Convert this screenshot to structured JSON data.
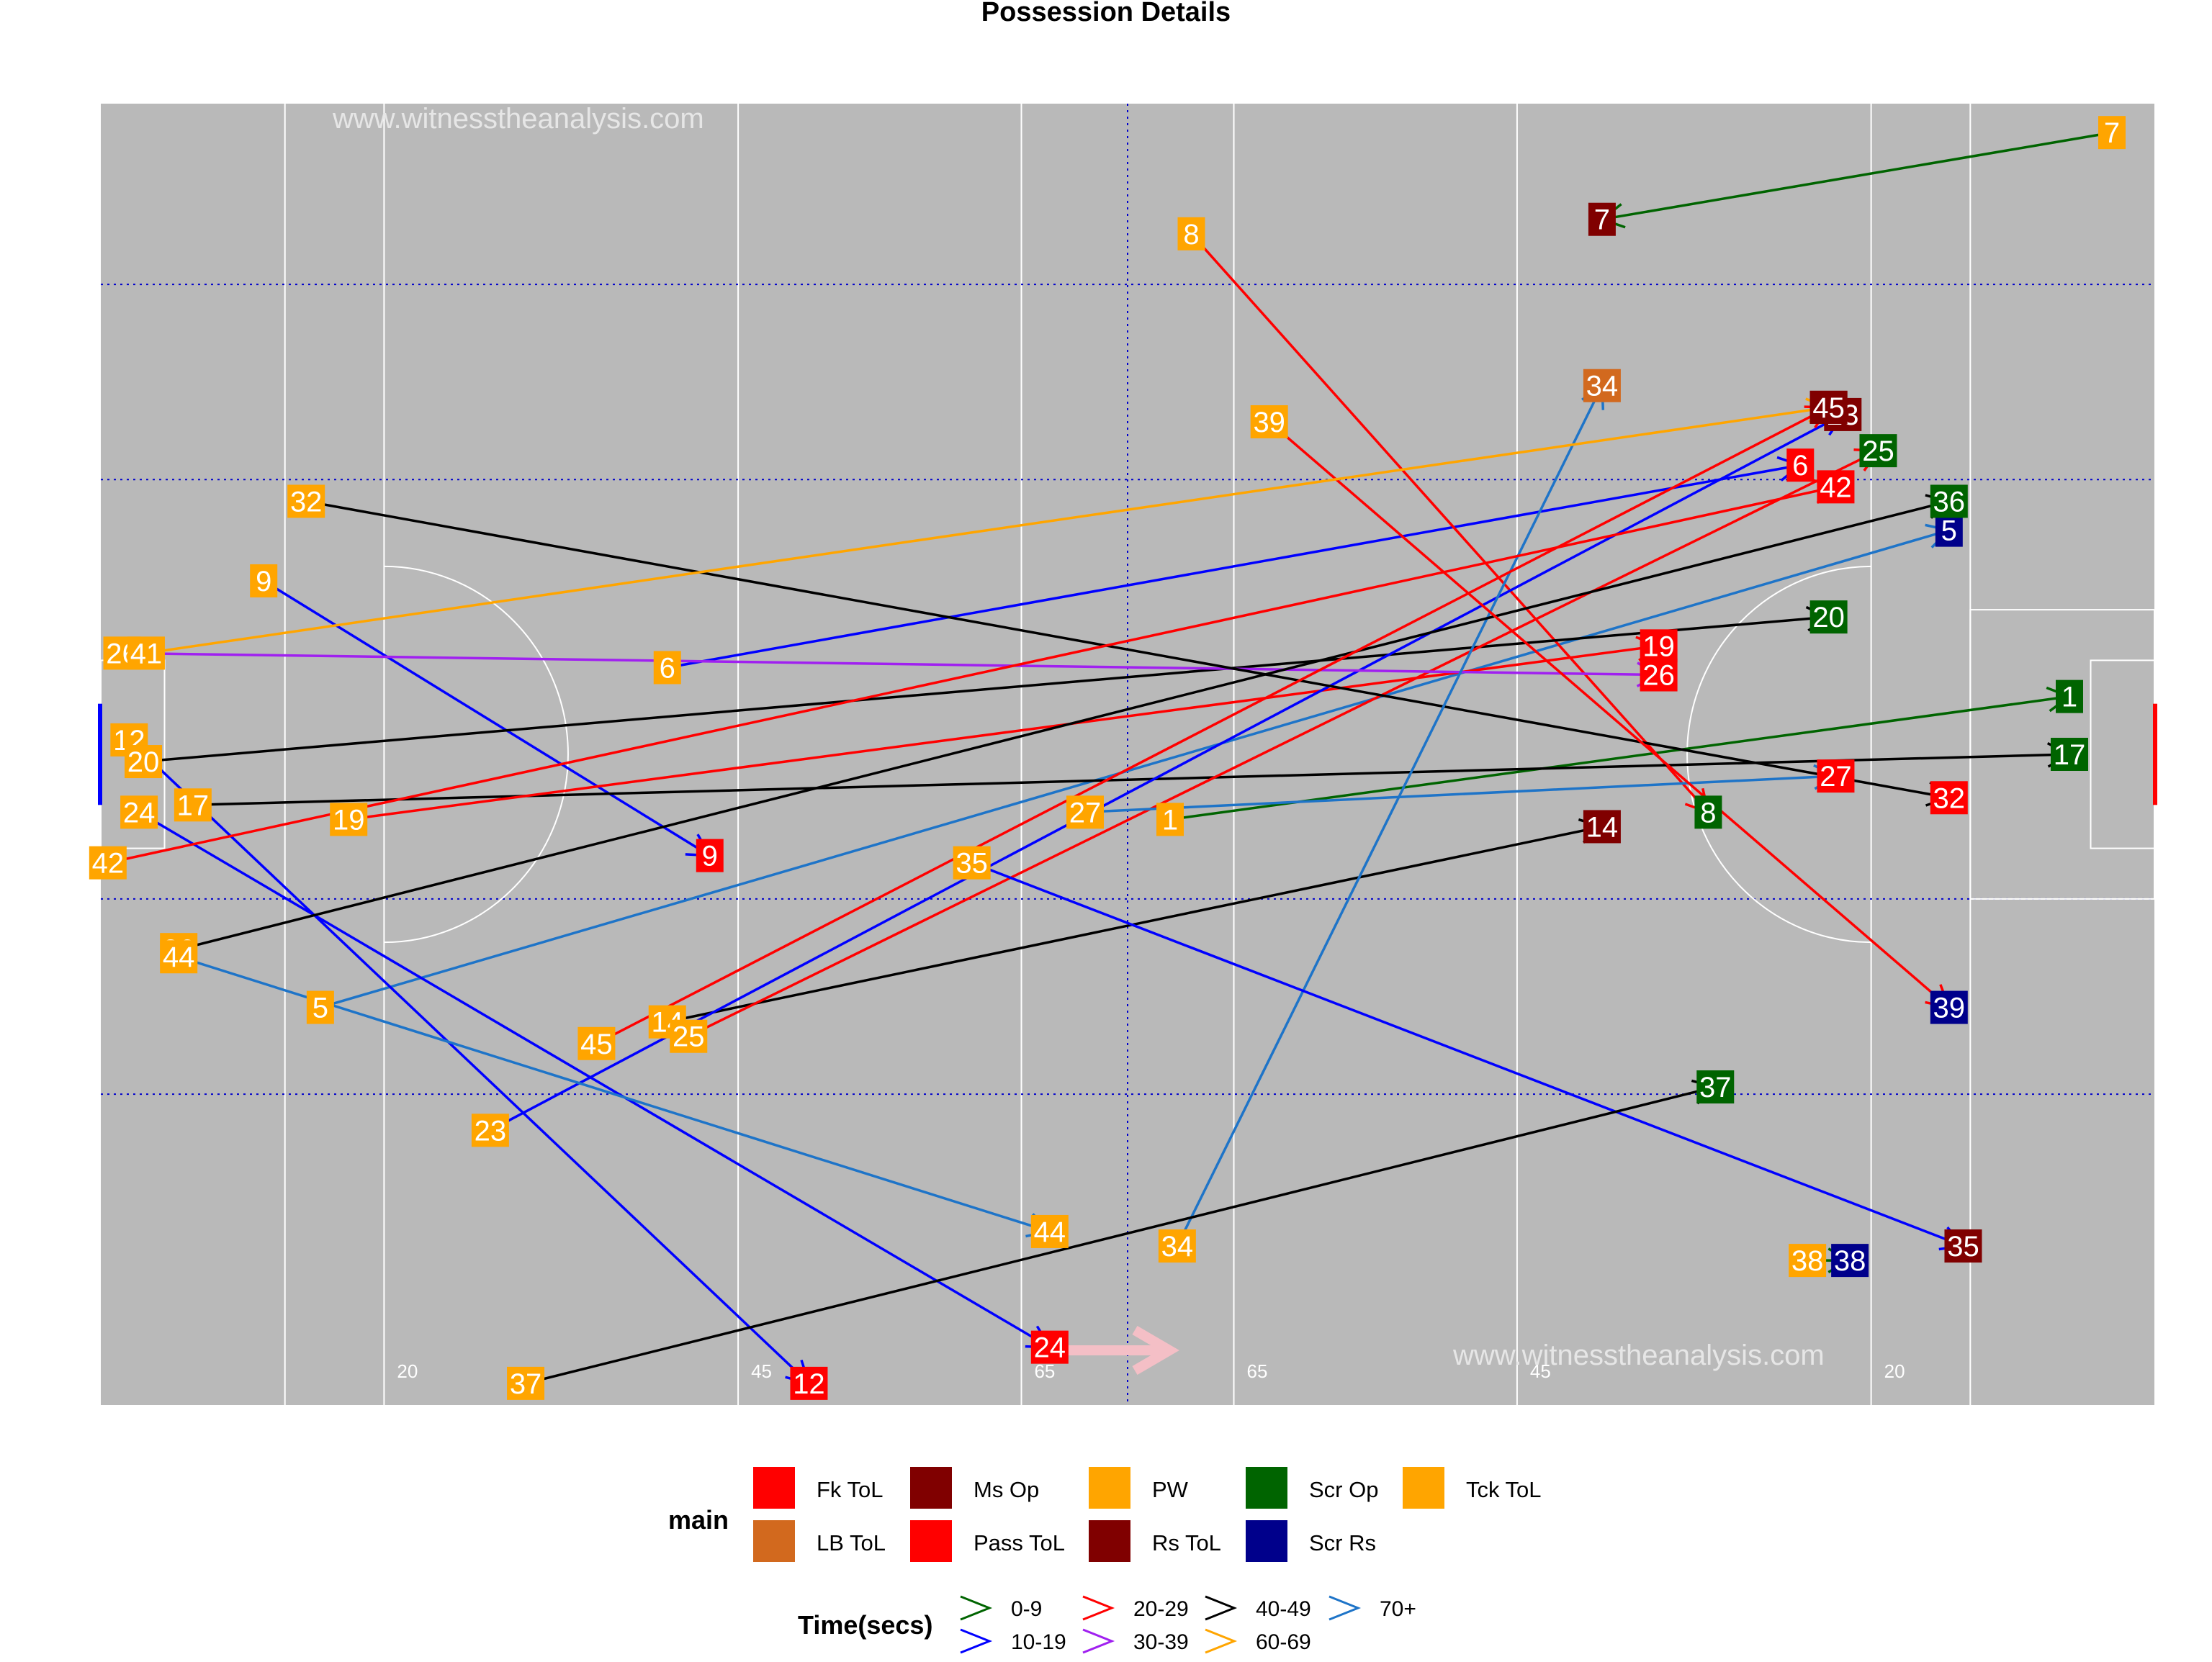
{
  "chart_data": {
    "type": "scatter",
    "title": "Possession Details",
    "watermarks": [
      "www.witnesstheanalysis.com",
      "www.witnesstheanalysis.com"
    ],
    "pitch": {
      "length": 145,
      "width": 90,
      "x_labels": [
        "20",
        "45",
        "65",
        "65",
        "45",
        "20"
      ],
      "background": "#b9b9b9",
      "line_color": "#ffffff",
      "zone_line_color": "#0000cc"
    },
    "category_colors": {
      "Fk ToL": "#ff0000",
      "LB ToL": "#d2691e",
      "Ms Op": "#800000",
      "Pass ToL": "#ff0000",
      "PW": "#ffa500",
      "Rs ToL": "#800000",
      "Scr Op": "#006400",
      "Scr Rs": "#00008b",
      "Tck ToL": "#ffa500"
    },
    "time_colors": {
      "0-9": "#006400",
      "10-19": "#0000ff",
      "20-29": "#ff0000",
      "30-39": "#a020f0",
      "40-49": "#000000",
      "60-69": "#ffa500",
      "70+": "#1e74c8"
    },
    "possessions": [
      {
        "id": "1",
        "start": [
          75.5,
          40.5
        ],
        "end": [
          139,
          49
        ],
        "start_cat": "PW",
        "end_cat": "Scr Op",
        "time": "0-9"
      },
      {
        "id": "5",
        "start": [
          15.5,
          27.5
        ],
        "end": [
          130.5,
          60.5
        ],
        "start_cat": "PW",
        "end_cat": "Scr Rs",
        "time": "70+"
      },
      {
        "id": "6",
        "start": [
          40,
          51
        ],
        "end": [
          120,
          65
        ],
        "start_cat": "PW",
        "end_cat": "Pass ToL",
        "time": "10-19"
      },
      {
        "id": "7",
        "start": [
          142,
          88
        ],
        "end": [
          106,
          82
        ],
        "start_cat": "PW",
        "end_cat": "Ms Op",
        "time": "0-9"
      },
      {
        "id": "8",
        "start": [
          77,
          81
        ],
        "end": [
          113.5,
          41
        ],
        "start_cat": "PW",
        "end_cat": "Scr Op",
        "time": "20-29"
      },
      {
        "id": "9",
        "start": [
          11.5,
          57
        ],
        "end": [
          43,
          38
        ],
        "start_cat": "PW",
        "end_cat": "Pass ToL",
        "time": "10-19"
      },
      {
        "id": "12",
        "start": [
          2,
          46
        ],
        "end": [
          50,
          1.5
        ],
        "start_cat": "PW",
        "end_cat": "Pass ToL",
        "time": "10-19"
      },
      {
        "id": "14",
        "start": [
          40,
          26.5
        ],
        "end": [
          106,
          40
        ],
        "start_cat": "PW",
        "end_cat": "Rs ToL",
        "time": "40-49"
      },
      {
        "id": "17",
        "start": [
          6.5,
          41.5
        ],
        "end": [
          139,
          45
        ],
        "start_cat": "PW",
        "end_cat": "Scr Op",
        "time": "40-49"
      },
      {
        "id": "19",
        "start": [
          17.5,
          40.5
        ],
        "end": [
          110,
          52.5
        ],
        "start_cat": "PW",
        "end_cat": "Pass ToL",
        "time": "20-29"
      },
      {
        "id": "20",
        "start": [
          3,
          44.5
        ],
        "end": [
          122,
          54.5
        ],
        "start_cat": "PW",
        "end_cat": "Scr Op",
        "time": "40-49"
      },
      {
        "id": "23",
        "start": [
          27.5,
          19
        ],
        "end": [
          123,
          68.5
        ],
        "start_cat": "PW",
        "end_cat": "Ms Op",
        "time": "10-19"
      },
      {
        "id": "24",
        "start": [
          2.7,
          41
        ],
        "end": [
          67,
          4
        ],
        "start_cat": "PW",
        "end_cat": "Pass ToL",
        "time": "10-19"
      },
      {
        "id": "25",
        "start": [
          41.5,
          25.5
        ],
        "end": [
          125.5,
          66
        ],
        "start_cat": "PW",
        "end_cat": "Scr Op",
        "time": "20-29"
      },
      {
        "id": "26",
        "start": [
          1.5,
          52
        ],
        "end": [
          110,
          50.5
        ],
        "start_cat": "PW",
        "end_cat": "Pass ToL",
        "time": "30-39"
      },
      {
        "id": "27",
        "start": [
          69.5,
          41
        ],
        "end": [
          122.5,
          43.5
        ],
        "start_cat": "PW",
        "end_cat": "Pass ToL",
        "time": "70+"
      },
      {
        "id": "32",
        "start": [
          14.5,
          62.5
        ],
        "end": [
          130.5,
          42
        ],
        "start_cat": "PW",
        "end_cat": "Pass ToL",
        "time": "40-49"
      },
      {
        "id": "34",
        "start": [
          76,
          11
        ],
        "end": [
          106,
          70.5
        ],
        "start_cat": "PW",
        "end_cat": "LB ToL",
        "time": "70+"
      },
      {
        "id": "35",
        "start": [
          61.5,
          37.5
        ],
        "end": [
          131.5,
          11
        ],
        "start_cat": "PW",
        "end_cat": "Rs ToL",
        "time": "10-19"
      },
      {
        "id": "36",
        "start": [
          5.5,
          31.5
        ],
        "end": [
          130.5,
          62.5
        ],
        "start_cat": "PW",
        "end_cat": "Scr Op",
        "time": "40-49"
      },
      {
        "id": "37",
        "start": [
          30,
          1.5
        ],
        "end": [
          114,
          22
        ],
        "start_cat": "PW",
        "end_cat": "Scr Op",
        "time": "40-49"
      },
      {
        "id": "38",
        "start": [
          120.5,
          10
        ],
        "end": [
          123.5,
          10
        ],
        "start_cat": "PW",
        "end_cat": "Scr Rs",
        "time": "0-9"
      },
      {
        "id": "39",
        "start": [
          82.5,
          68
        ],
        "end": [
          130.5,
          27.5
        ],
        "start_cat": "PW",
        "end_cat": "Scr Rs",
        "time": "20-29"
      },
      {
        "id": "41",
        "start": [
          3.2,
          52
        ],
        "end": [
          122,
          69
        ],
        "start_cat": "PW",
        "end_cat": "Ms Op",
        "time": "60-69"
      },
      {
        "id": "42",
        "start": [
          0.5,
          37.5
        ],
        "end": [
          122.5,
          63.5
        ],
        "start_cat": "PW",
        "end_cat": "Pass ToL",
        "time": "20-29"
      },
      {
        "id": "44",
        "start": [
          5.5,
          31
        ],
        "end": [
          67,
          12
        ],
        "start_cat": "PW",
        "end_cat": "PW",
        "time": "70+"
      },
      {
        "id": "45",
        "start": [
          35,
          25
        ],
        "end": [
          122,
          69
        ],
        "start_cat": "PW",
        "end_cat": "Ms Op",
        "time": "20-29"
      }
    ],
    "legend_main": {
      "title": "main",
      "items": [
        "Fk ToL",
        "LB ToL",
        "Ms Op",
        "Pass ToL",
        "PW",
        "Rs ToL",
        "Scr Op",
        "Scr Rs",
        "Tck ToL"
      ],
      "colors": [
        "#ff0000",
        "#d2691e",
        "#800000",
        "#ff0000",
        "#ffa500",
        "#800000",
        "#006400",
        "#00008b",
        "#ffa500"
      ]
    },
    "legend_time": {
      "title": "Time(secs)",
      "items": [
        "0-9",
        "10-19",
        "20-29",
        "30-39",
        "40-49",
        "60-69",
        "70+"
      ],
      "colors": [
        "#006400",
        "#0000ff",
        "#ff0000",
        "#a020f0",
        "#000000",
        "#ffa500",
        "#1e74c8"
      ]
    },
    "direction_arrow_color": "#f4bfc6"
  }
}
